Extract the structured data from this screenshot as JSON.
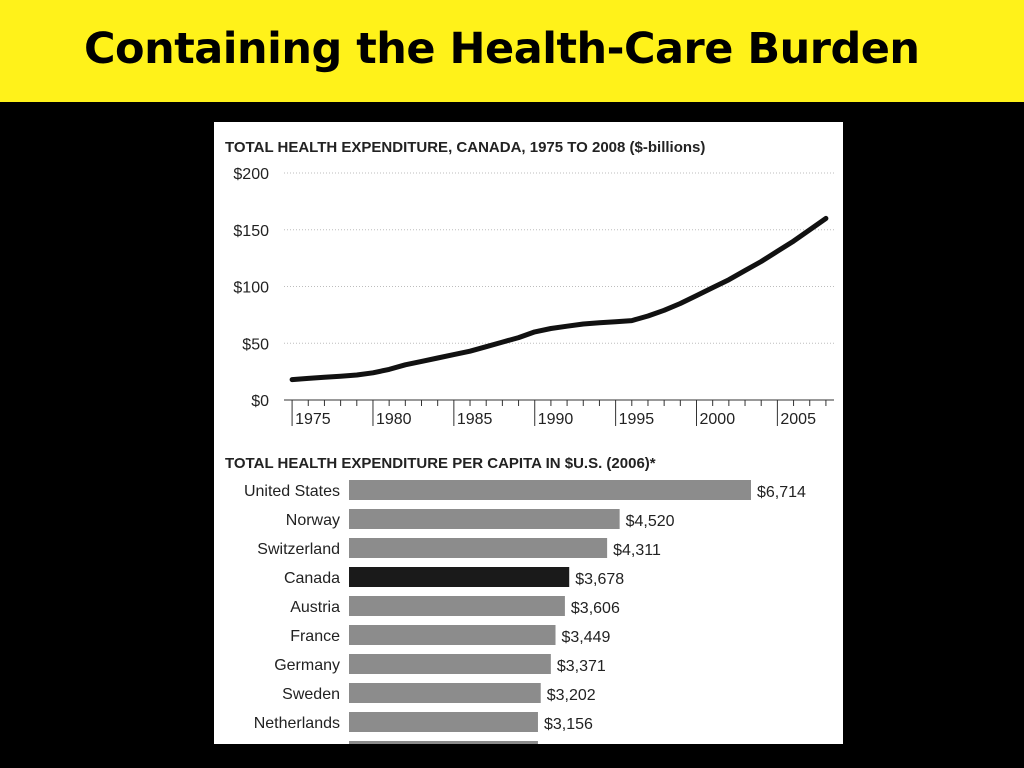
{
  "slide": {
    "title": "Containing the Health-Care Burden"
  },
  "chart_data": [
    {
      "type": "line",
      "title": "TOTAL HEALTH EXPENDITURE, CANADA, 1975 TO 2008 ($-billions)",
      "xlabel": "",
      "ylabel": "",
      "xlim": [
        1974.5,
        2008.5
      ],
      "ylim": [
        0,
        200
      ],
      "yticks": [
        0,
        50,
        100,
        150,
        200
      ],
      "ytick_labels": [
        "$0",
        "$50",
        "$100",
        "$150",
        "$200"
      ],
      "xticks": [
        1975,
        1980,
        1985,
        1990,
        1995,
        2000,
        2005
      ],
      "xtick_labels": [
        "1975",
        "1980",
        "1985",
        "1990",
        "1995",
        "2000",
        "2005"
      ],
      "grid": true,
      "x": [
        1975,
        1976,
        1977,
        1978,
        1979,
        1980,
        1981,
        1982,
        1983,
        1984,
        1985,
        1986,
        1987,
        1988,
        1989,
        1990,
        1991,
        1992,
        1993,
        1994,
        1995,
        1996,
        1997,
        1998,
        1999,
        2000,
        2001,
        2002,
        2003,
        2004,
        2005,
        2006,
        2007,
        2008
      ],
      "series": [
        {
          "name": "Total health expenditure",
          "color": "#111111",
          "values": [
            18,
            19,
            20,
            21,
            22,
            24,
            27,
            31,
            34,
            37,
            40,
            43,
            47,
            51,
            55,
            60,
            63,
            65,
            67,
            68,
            69,
            70,
            74,
            79,
            85,
            92,
            99,
            106,
            114,
            122,
            131,
            140,
            150,
            160
          ]
        }
      ]
    },
    {
      "type": "bar",
      "orientation": "horizontal",
      "title": "TOTAL HEALTH EXPENDITURE PER CAPITA IN $U.S. (2006)*",
      "xlabel": "",
      "ylabel": "",
      "xlim": [
        0,
        6714
      ],
      "grid": false,
      "categories": [
        "United States",
        "Norway",
        "Switzerland",
        "Canada",
        "Austria",
        "France",
        "Germany",
        "Sweden",
        "Netherlands"
      ],
      "values": [
        6714,
        4520,
        4311,
        3678,
        3606,
        3449,
        3371,
        3202,
        3156
      ],
      "value_labels": [
        "$6,714",
        "$4,520",
        "$4,311",
        "$3,678",
        "$3,606",
        "$3,449",
        "$3,371",
        "$3,202",
        "$3,156"
      ],
      "bar_color": "#8c8c8c",
      "highlight_category": "Canada",
      "highlight_color": "#1a1a1a"
    }
  ]
}
